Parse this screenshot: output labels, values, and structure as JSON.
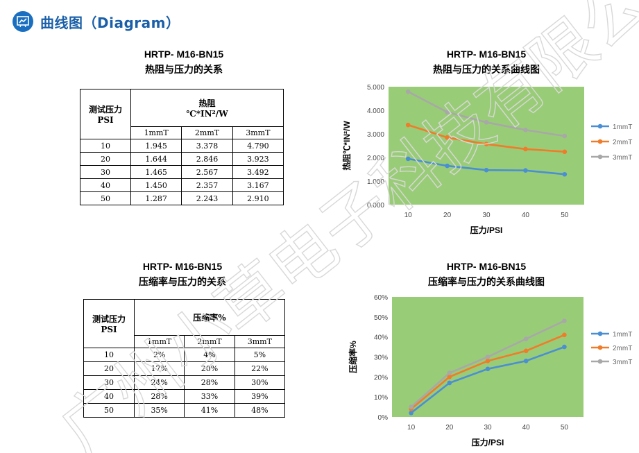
{
  "header": {
    "title": "曲线图（Diagram）",
    "icon": "chart-icon"
  },
  "thermal": {
    "model": "HRTP- M16-BN15",
    "table_title": "热阻与压力的关系",
    "chart_title": "热阻与压力的关系曲线图",
    "col_pressure_line1": "测试压力",
    "col_pressure_line2": "PSI",
    "col_value_line1": "热阻",
    "col_value_line2": "℃*IN²/W",
    "sub_headers": [
      "1mmT",
      "2mmT",
      "3mmT"
    ],
    "rows": [
      [
        "10",
        "1.945",
        "3.378",
        "4.790"
      ],
      [
        "20",
        "1.644",
        "2.846",
        "3.923"
      ],
      [
        "30",
        "1.465",
        "2.567",
        "3.492"
      ],
      [
        "40",
        "1.450",
        "2.357",
        "3.167"
      ],
      [
        "50",
        "1.287",
        "2.243",
        "2.910"
      ]
    ]
  },
  "compression": {
    "model": "HRTP- M16-BN15",
    "table_title": "压缩率与压力的关系",
    "chart_title": "压缩率与压力的关系曲线图",
    "col_pressure_line1": "测试压力",
    "col_pressure_line2": "PSI",
    "col_value_line1": "压缩率%",
    "sub_headers": [
      "1mmT",
      "2mmT",
      "3mmT"
    ],
    "rows": [
      [
        "10",
        "2%",
        "4%",
        "5%"
      ],
      [
        "20",
        "17%",
        "20%",
        "22%"
      ],
      [
        "30",
        "24%",
        "28%",
        "30%"
      ],
      [
        "40",
        "28%",
        "33%",
        "39%"
      ],
      [
        "50",
        "35%",
        "41%",
        "48%"
      ]
    ]
  },
  "watermark": {
    "text": "广州小草电子科技有限公司",
    "color": "#d8d8d8"
  },
  "chart_data": [
    {
      "type": "line",
      "title": "热阻与压力的关系曲线图",
      "xlabel": "压力/PSI",
      "ylabel": "热阻℃*IN²/W",
      "x": [
        10,
        20,
        30,
        40,
        50
      ],
      "ylim": [
        0,
        5
      ],
      "yticks": [
        "0.000",
        "1.000",
        "2.000",
        "3.000",
        "4.000",
        "5.000"
      ],
      "plot_background": "#99cc77",
      "legend": "right",
      "series": [
        {
          "name": "1mmT",
          "color": "#4a8fd4",
          "values": [
            1.945,
            1.644,
            1.465,
            1.45,
            1.287
          ]
        },
        {
          "name": "2mmT",
          "color": "#f07c2a",
          "values": [
            3.378,
            2.846,
            2.567,
            2.357,
            2.243
          ]
        },
        {
          "name": "3mmT",
          "color": "#a8a8a8",
          "values": [
            4.79,
            3.923,
            3.492,
            3.167,
            2.91
          ]
        }
      ]
    },
    {
      "type": "line",
      "title": "压缩率与压力的关系曲线图",
      "xlabel": "压力/PSI",
      "ylabel": "压缩率%",
      "x": [
        10,
        20,
        30,
        40,
        50
      ],
      "ylim": [
        0,
        60
      ],
      "yticks": [
        "0%",
        "10%",
        "20%",
        "30%",
        "40%",
        "50%",
        "60%"
      ],
      "plot_background": "#99cc77",
      "legend": "right",
      "series": [
        {
          "name": "1mmT",
          "color": "#4a8fd4",
          "values": [
            2,
            17,
            24,
            28,
            35
          ]
        },
        {
          "name": "2mmT",
          "color": "#f07c2a",
          "values": [
            4,
            20,
            28,
            33,
            41
          ]
        },
        {
          "name": "3mmT",
          "color": "#a8a8a8",
          "values": [
            5,
            22,
            30,
            39,
            48
          ]
        }
      ]
    }
  ]
}
